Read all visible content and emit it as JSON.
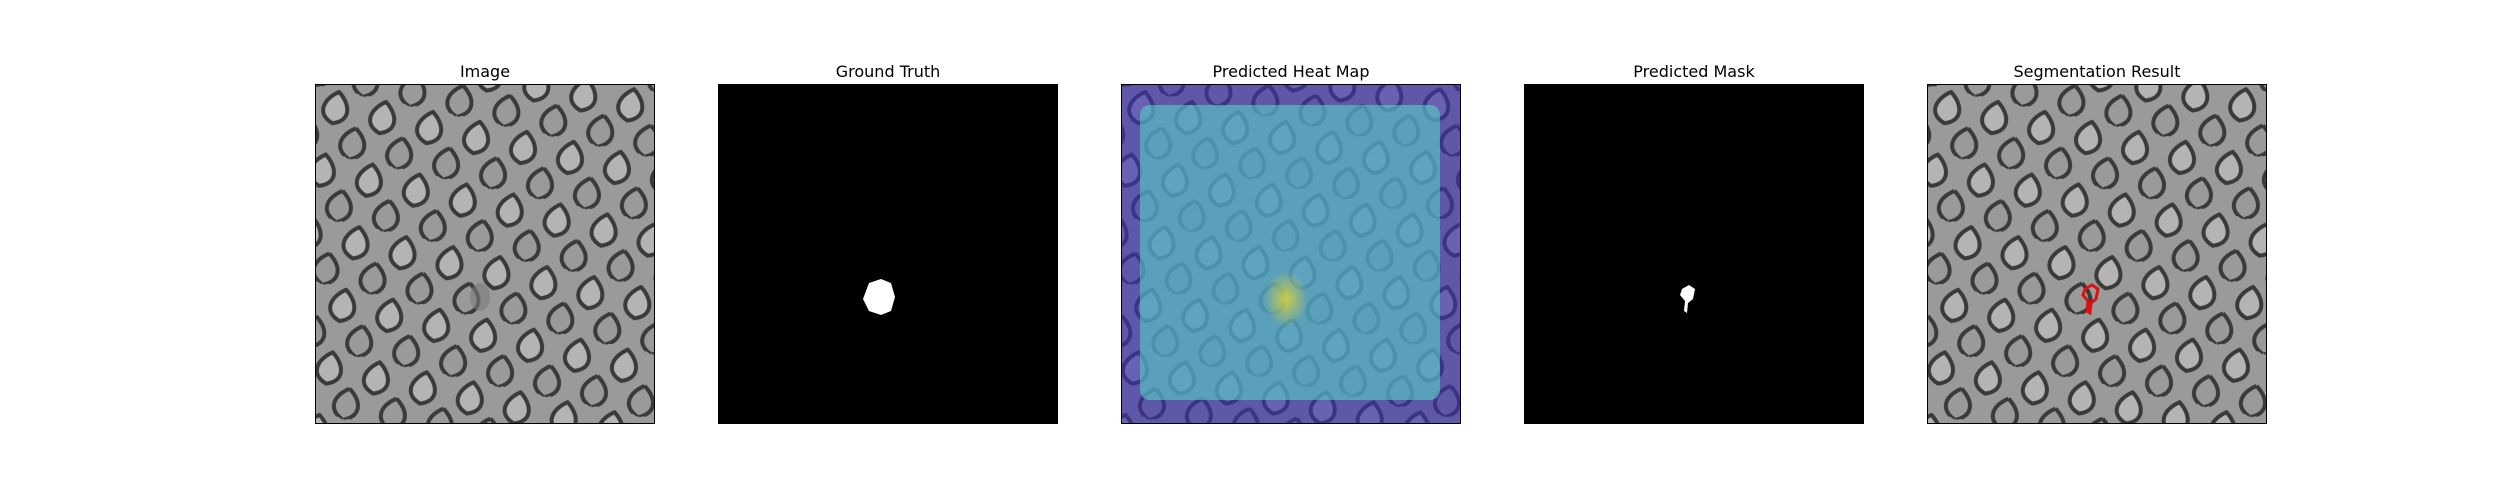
{
  "panels": [
    {
      "title": "Image"
    },
    {
      "title": "Ground Truth"
    },
    {
      "title": "Predicted Heat Map"
    },
    {
      "title": "Predicted Mask"
    },
    {
      "title": "Segmentation Result"
    }
  ],
  "colors": {
    "mesh_fill": "#9b9b9b",
    "mesh_line": "#3c3c3c",
    "mask_background": "#000000",
    "mask_foreground": "#ffffff",
    "heatmap_low": "#4b3fb0",
    "heatmap_mid": "#5fc7c0",
    "heatmap_high": "#c9c94a",
    "segmentation_outline": "#e01010"
  }
}
